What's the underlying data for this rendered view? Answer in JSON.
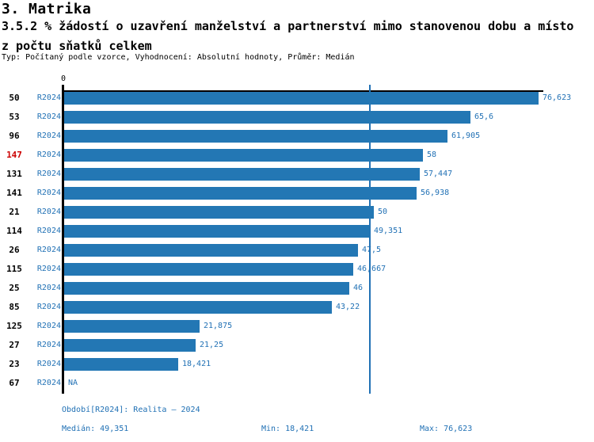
{
  "header": {
    "line1": "3. Matrika",
    "line2": "3.5.2 % žádostí o uzavření manželství a partnerství mimo stanovenou dobu a místo",
    "line3": "z počtu sňatků celkem",
    "subtitle": "Typ: Počítaný podle vzorce, Vyhodnocení: Absolutní hodnoty, Průměr: Medián"
  },
  "chart_data": {
    "type": "bar",
    "orientation": "horizontal",
    "title": "3.5.2 % žádostí o uzavření manželství a partnerství mimo stanovenou dobu a místo z počtu sňatků celkem",
    "xlabel": "",
    "ylabel": "",
    "x_axis": {
      "zero_label": "0",
      "range": [
        0,
        76.623
      ],
      "grid": false
    },
    "series_label": "R2024",
    "median_line_value": 49.351,
    "rows": [
      {
        "id": "50",
        "period": "R2024",
        "value": 76.623,
        "value_label": "76,623",
        "highlighted": false
      },
      {
        "id": "53",
        "period": "R2024",
        "value": 65.6,
        "value_label": "65,6",
        "highlighted": false
      },
      {
        "id": "96",
        "period": "R2024",
        "value": 61.905,
        "value_label": "61,905",
        "highlighted": false
      },
      {
        "id": "147",
        "period": "R2024",
        "value": 58,
        "value_label": "58",
        "highlighted": true
      },
      {
        "id": "131",
        "period": "R2024",
        "value": 57.447,
        "value_label": "57,447",
        "highlighted": false
      },
      {
        "id": "141",
        "period": "R2024",
        "value": 56.938,
        "value_label": "56,938",
        "highlighted": false
      },
      {
        "id": "21",
        "period": "R2024",
        "value": 50,
        "value_label": "50",
        "highlighted": false
      },
      {
        "id": "114",
        "period": "R2024",
        "value": 49.351,
        "value_label": "49,351",
        "highlighted": false
      },
      {
        "id": "26",
        "period": "R2024",
        "value": 47.5,
        "value_label": "47,5",
        "highlighted": false
      },
      {
        "id": "115",
        "period": "R2024",
        "value": 46.667,
        "value_label": "46,667",
        "highlighted": false
      },
      {
        "id": "25",
        "period": "R2024",
        "value": 46,
        "value_label": "46",
        "highlighted": false
      },
      {
        "id": "85",
        "period": "R2024",
        "value": 43.22,
        "value_label": "43,22",
        "highlighted": false
      },
      {
        "id": "125",
        "period": "R2024",
        "value": 21.875,
        "value_label": "21,875",
        "highlighted": false
      },
      {
        "id": "27",
        "period": "R2024",
        "value": 21.25,
        "value_label": "21,25",
        "highlighted": false
      },
      {
        "id": "23",
        "period": "R2024",
        "value": 18.421,
        "value_label": "18,421",
        "highlighted": false
      },
      {
        "id": "67",
        "period": "R2024",
        "value": null,
        "value_label": "NA",
        "highlighted": false
      }
    ]
  },
  "footer": {
    "period": "Období[R2024]: Realita – 2024",
    "median": "Medián: 49,351",
    "min": "Min: 18,421",
    "max": "Max: 76,623"
  },
  "colors": {
    "bar": "#2377b4",
    "blue_text": "#2171b5",
    "median_line": "#2171b5",
    "highlight_row": "#cc0000",
    "axis": "#000000",
    "title_text": "#000000",
    "background": "#ffffff"
  }
}
